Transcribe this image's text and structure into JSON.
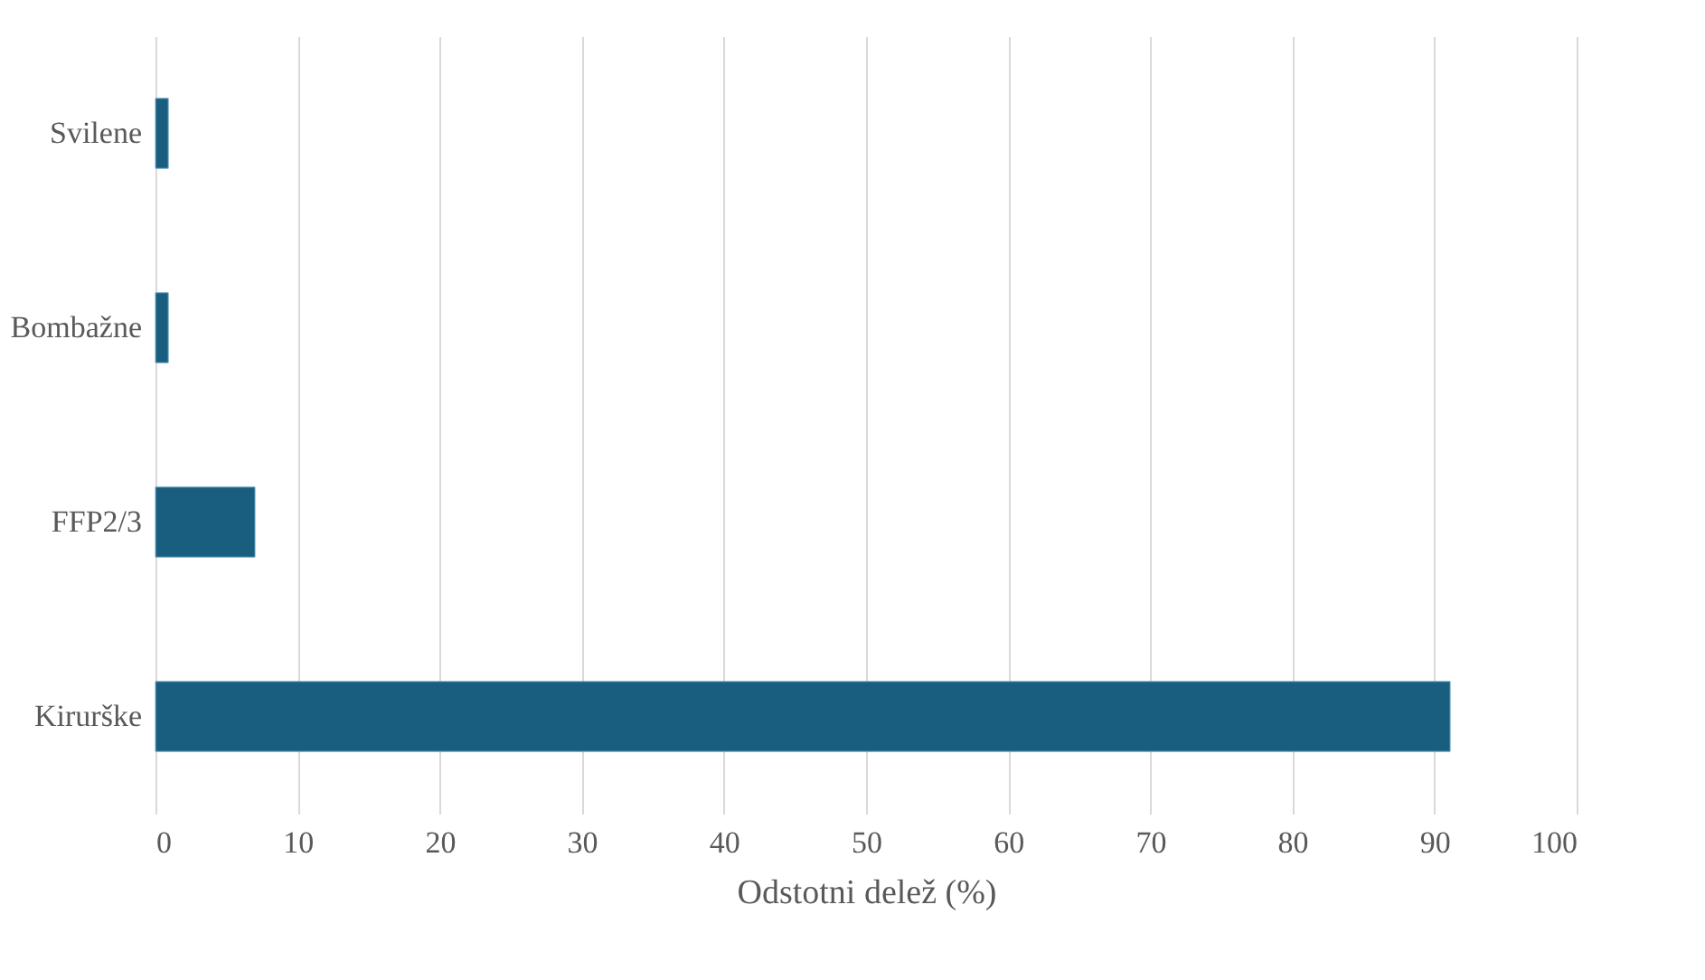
{
  "chart_data": {
    "type": "bar",
    "orientation": "horizontal",
    "categories": [
      "Svilene",
      "Bombažne",
      "FFP2/3",
      "Kirurške"
    ],
    "values": [
      0.9,
      0.9,
      7.0,
      91.1
    ],
    "color": "#195e7f",
    "xlabel": "Odstotni delež (%)",
    "xlim": [
      0,
      100
    ],
    "xticks": [
      0,
      10,
      20,
      30,
      40,
      50,
      60,
      70,
      80,
      90,
      100
    ],
    "grid": "x"
  }
}
